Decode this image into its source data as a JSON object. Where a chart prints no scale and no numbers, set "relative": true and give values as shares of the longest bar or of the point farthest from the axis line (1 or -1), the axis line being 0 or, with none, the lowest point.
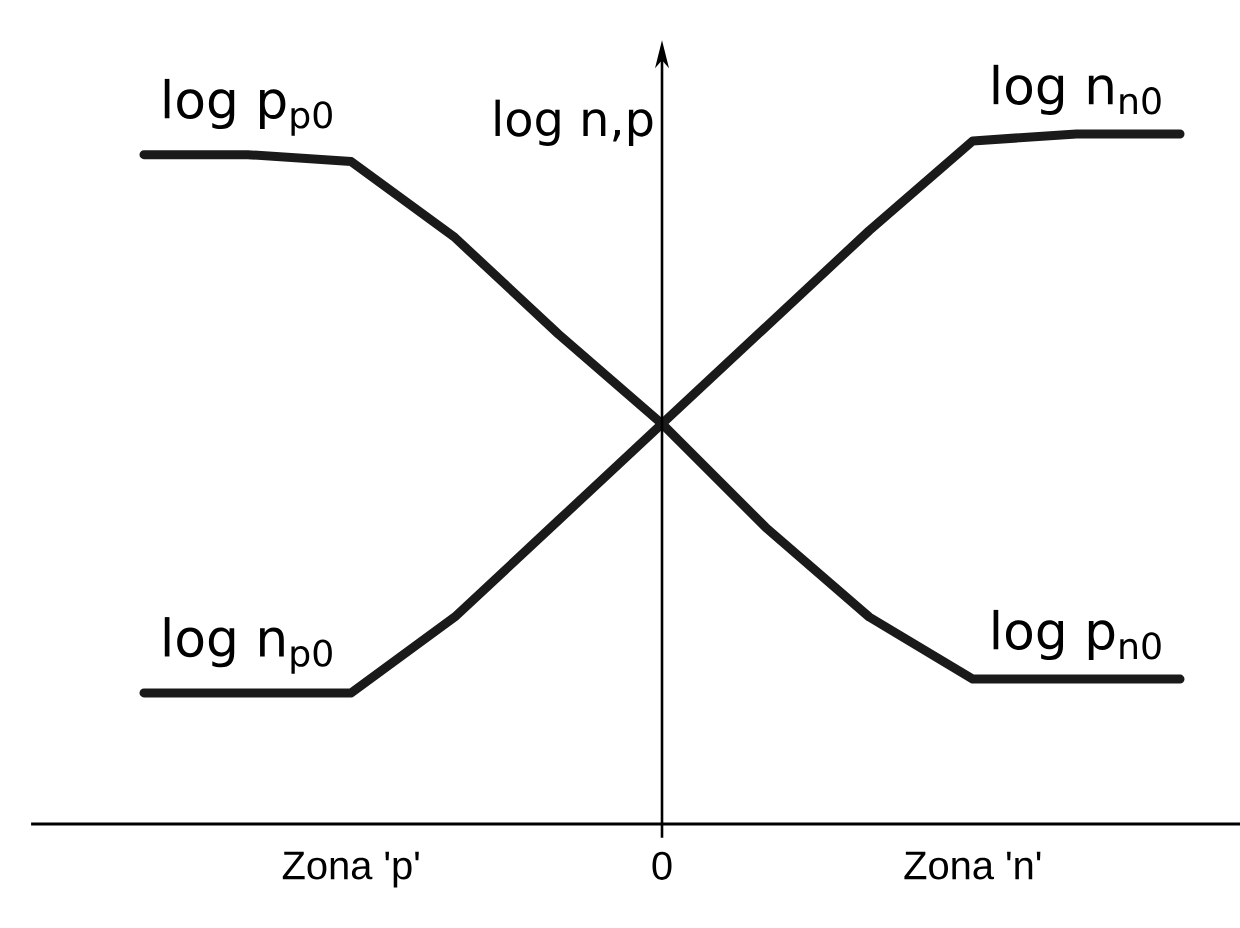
{
  "chart_data": {
    "type": "line",
    "relative": true,
    "ylabel": "log n,p",
    "line_style": "solid",
    "categories": [
      null,
      null,
      "Zona 'p'",
      null,
      null,
      "0",
      null,
      null,
      "Zona 'n'",
      null,
      null
    ],
    "series": [
      {
        "color": "#1a1a1a",
        "values": [
          0.97,
          0.97,
          0.96,
          0.85,
          0.71,
          0.58,
          0.43,
          0.3,
          0.21,
          0.21,
          0.21
        ]
      },
      {
        "color": "#1a1a1a",
        "values": [
          0.19,
          0.19,
          0.19,
          0.3,
          0.44,
          0.58,
          0.72,
          0.86,
          0.99,
          1,
          1
        ]
      }
    ],
    "annotations": [
      "log p$_{p0}$",
      "log n$_{n0}$",
      "log n$_{p0}$",
      "log p$_{n0}$"
    ]
  }
}
